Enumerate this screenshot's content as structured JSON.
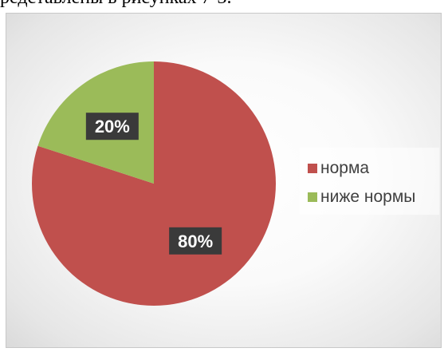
{
  "caption": "редставлены в рисунках 7-3.",
  "chart_data": {
    "type": "pie",
    "categories": [
      "норма",
      "ниже нормы"
    ],
    "values": [
      80,
      20
    ],
    "labels": [
      "80%",
      "20%"
    ],
    "colors": [
      "#C0504D",
      "#9BBB59"
    ],
    "legend_position": "right",
    "title": ""
  }
}
